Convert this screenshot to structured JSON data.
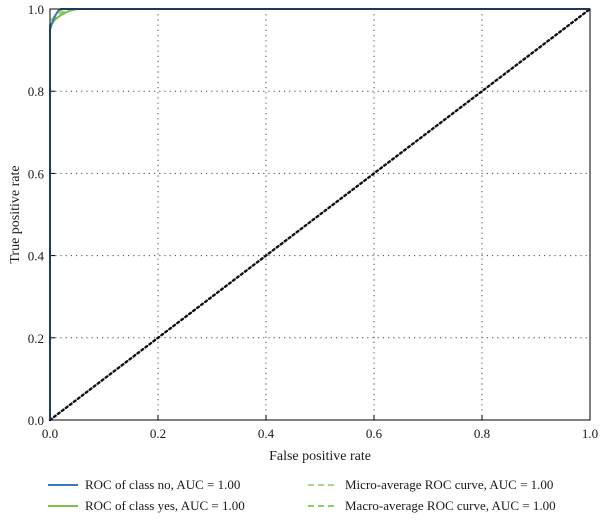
{
  "chart_data": {
    "type": "line",
    "title": "",
    "xlabel": "False positive rate",
    "ylabel": "True positive rate",
    "xlim": [
      0.0,
      1.0
    ],
    "ylim": [
      0.0,
      1.0
    ],
    "xticks": [
      "0.0",
      "0.2",
      "0.4",
      "0.6",
      "0.8",
      "1.0"
    ],
    "yticks": [
      "0.0",
      "0.2",
      "0.4",
      "0.6",
      "0.8",
      "1.0"
    ],
    "grid": true,
    "legend_position": "bottom",
    "series": [
      {
        "name": "ROC of class no, AUC = 1.00",
        "color": "#3a78b8",
        "style": "solid",
        "points": [
          [
            0.0,
            0.0
          ],
          [
            0.0,
            0.95
          ],
          [
            0.005,
            0.97
          ],
          [
            0.01,
            0.985
          ],
          [
            0.015,
            0.995
          ],
          [
            0.02,
            1.0
          ],
          [
            1.0,
            1.0
          ]
        ]
      },
      {
        "name": "ROC of class yes, AUC = 1.00",
        "color": "#7cc04a",
        "style": "solid",
        "points": [
          [
            0.0,
            0.0
          ],
          [
            0.0,
            0.96
          ],
          [
            0.01,
            0.975
          ],
          [
            0.02,
            0.985
          ],
          [
            0.035,
            0.995
          ],
          [
            0.05,
            1.0
          ],
          [
            1.0,
            1.0
          ]
        ]
      },
      {
        "name": "Micro-average ROC curve, AUC = 1.00",
        "color": "#a8d98a",
        "style": "dashed",
        "points": [
          [
            0.0,
            0.0
          ],
          [
            0.0,
            0.97
          ],
          [
            0.01,
            0.985
          ],
          [
            0.02,
            0.995
          ],
          [
            0.03,
            1.0
          ],
          [
            1.0,
            1.0
          ]
        ]
      },
      {
        "name": "Macro-average ROC curve, AUC = 1.00",
        "color": "#8ccf6a",
        "style": "dashed",
        "points": [
          [
            0.0,
            0.0
          ],
          [
            0.0,
            0.965
          ],
          [
            0.01,
            0.98
          ],
          [
            0.02,
            0.99
          ],
          [
            0.04,
            1.0
          ],
          [
            1.0,
            1.0
          ]
        ]
      },
      {
        "name": "",
        "color": "#111111",
        "style": "dotted",
        "points": [
          [
            0.0,
            0.0
          ],
          [
            1.0,
            1.0
          ]
        ]
      }
    ]
  }
}
